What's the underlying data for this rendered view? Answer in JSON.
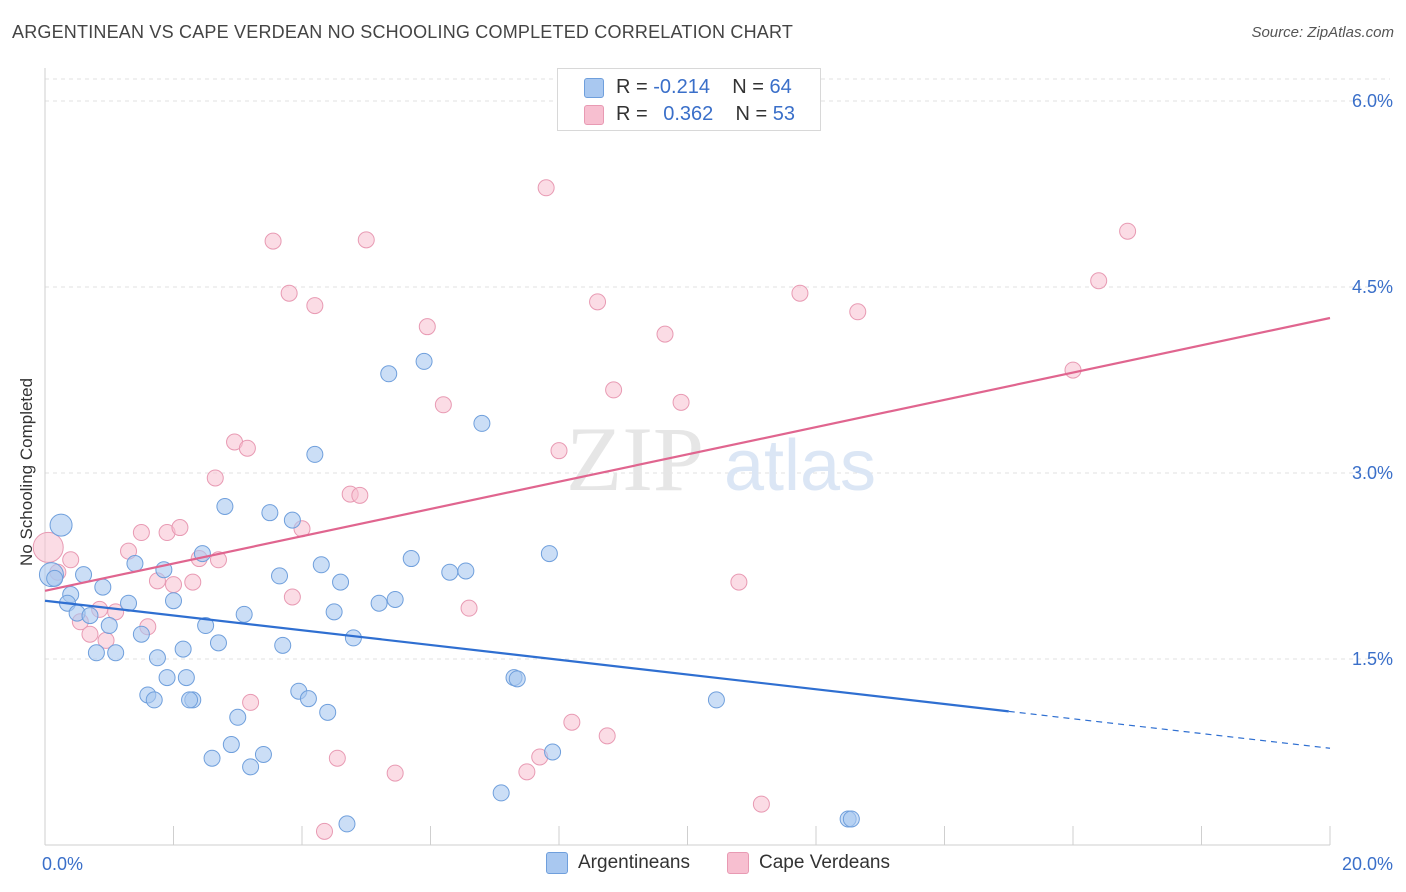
{
  "header": {
    "title": "ARGENTINEAN VS CAPE VERDEAN NO SCHOOLING COMPLETED CORRELATION CHART",
    "source": "Source: ZipAtlas.com"
  },
  "watermark": {
    "zip": "ZIP",
    "atlas": "atlas"
  },
  "legend": {
    "argentineans": {
      "r_label": "R =",
      "r_value": "-0.214",
      "n_label": "N =",
      "n_value": "64"
    },
    "cape_verdeans": {
      "r_label": "R =",
      "r_value": "0.362",
      "n_label": "N =",
      "n_value": "53"
    }
  },
  "bottom_legend": {
    "argentineans": "Argentineans",
    "cape_verdeans": "Cape Verdeans"
  },
  "colors": {
    "argentineans_fill": "#a9c8f0",
    "argentineans_stroke": "#6f9fdc",
    "argentineans_line": "#2f6fd1",
    "cape_verdeans_fill": "#f7bfd0",
    "cape_verdeans_stroke": "#e89ab3",
    "cape_verdeans_line": "#e0658f",
    "tick_label": "#3a6fc9"
  },
  "chart_data": {
    "type": "scatter",
    "title": "ARGENTINEAN VS CAPE VERDEAN NO SCHOOLING COMPLETED CORRELATION CHART",
    "xlabel": "",
    "ylabel": "No Schooling Completed",
    "xlim": [
      0,
      20
    ],
    "ylim": [
      0,
      6.25
    ],
    "x_tick_labels": [
      "0.0%",
      "20.0%"
    ],
    "y_ticks": [
      1.5,
      3.0,
      4.5,
      6.0
    ],
    "y_tick_labels": [
      "1.5%",
      "3.0%",
      "4.5%",
      "6.0%"
    ],
    "grid": "horizontal dashed",
    "legend_position": "top-center",
    "series": [
      {
        "name": "Argentineans",
        "r": -0.214,
        "n": 64,
        "trend": {
          "x0": 0,
          "y0": 1.97,
          "x1": 20,
          "y1": 0.78,
          "solid_until_x": 15.0
        },
        "points": [
          [
            0.25,
            2.58
          ],
          [
            0.1,
            2.18
          ],
          [
            0.15,
            2.15
          ],
          [
            0.4,
            2.02
          ],
          [
            0.6,
            2.18
          ],
          [
            0.35,
            1.95
          ],
          [
            0.5,
            1.87
          ],
          [
            0.7,
            1.85
          ],
          [
            0.9,
            2.08
          ],
          [
            0.8,
            1.55
          ],
          [
            1.0,
            1.77
          ],
          [
            1.1,
            1.55
          ],
          [
            1.3,
            1.95
          ],
          [
            1.4,
            2.27
          ],
          [
            1.5,
            1.7
          ],
          [
            1.6,
            1.21
          ],
          [
            1.7,
            1.17
          ],
          [
            1.75,
            1.51
          ],
          [
            1.85,
            2.22
          ],
          [
            1.9,
            1.35
          ],
          [
            2.0,
            1.97
          ],
          [
            2.15,
            1.58
          ],
          [
            2.2,
            1.35
          ],
          [
            2.3,
            1.17
          ],
          [
            2.45,
            2.35
          ],
          [
            2.5,
            1.77
          ],
          [
            2.6,
            0.7
          ],
          [
            2.7,
            1.63
          ],
          [
            2.8,
            2.73
          ],
          [
            2.9,
            0.81
          ],
          [
            3.0,
            1.03
          ],
          [
            3.1,
            1.86
          ],
          [
            3.2,
            0.63
          ],
          [
            3.4,
            0.73
          ],
          [
            3.5,
            2.68
          ],
          [
            3.65,
            2.17
          ],
          [
            3.7,
            1.61
          ],
          [
            3.85,
            2.62
          ],
          [
            3.95,
            1.24
          ],
          [
            4.1,
            1.18
          ],
          [
            4.2,
            3.15
          ],
          [
            4.3,
            2.26
          ],
          [
            4.4,
            1.07
          ],
          [
            4.5,
            1.88
          ],
          [
            4.6,
            2.12
          ],
          [
            4.7,
            0.17
          ],
          [
            4.8,
            1.67
          ],
          [
            5.2,
            1.95
          ],
          [
            5.35,
            3.8
          ],
          [
            5.45,
            1.98
          ],
          [
            5.7,
            2.31
          ],
          [
            5.9,
            3.9
          ],
          [
            6.3,
            2.2
          ],
          [
            6.55,
            2.21
          ],
          [
            6.8,
            3.4
          ],
          [
            7.1,
            0.42
          ],
          [
            7.3,
            1.35
          ],
          [
            7.85,
            2.35
          ],
          [
            7.9,
            0.75
          ],
          [
            10.45,
            1.17
          ],
          [
            12.5,
            0.21
          ],
          [
            12.55,
            0.21
          ],
          [
            7.35,
            1.34
          ],
          [
            2.25,
            1.17
          ]
        ]
      },
      {
        "name": "Cape Verdeans",
        "r": 0.362,
        "n": 53,
        "trend": {
          "x0": 0,
          "y0": 2.05,
          "x1": 20,
          "y1": 4.25
        },
        "points": [
          [
            0.05,
            2.4
          ],
          [
            0.2,
            2.2
          ],
          [
            0.4,
            2.3
          ],
          [
            0.55,
            1.8
          ],
          [
            0.7,
            1.7
          ],
          [
            0.85,
            1.9
          ],
          [
            0.95,
            1.65
          ],
          [
            1.1,
            1.88
          ],
          [
            1.3,
            2.37
          ],
          [
            1.5,
            2.52
          ],
          [
            1.6,
            1.76
          ],
          [
            1.75,
            2.13
          ],
          [
            1.9,
            2.52
          ],
          [
            2.0,
            2.1
          ],
          [
            2.1,
            2.56
          ],
          [
            2.3,
            2.12
          ],
          [
            2.4,
            2.31
          ],
          [
            2.65,
            2.96
          ],
          [
            2.7,
            2.3
          ],
          [
            2.95,
            3.25
          ],
          [
            3.15,
            3.2
          ],
          [
            3.2,
            1.15
          ],
          [
            3.55,
            4.87
          ],
          [
            3.8,
            4.45
          ],
          [
            3.85,
            2.0
          ],
          [
            4.0,
            2.55
          ],
          [
            4.2,
            4.35
          ],
          [
            4.35,
            0.11
          ],
          [
            4.55,
            0.7
          ],
          [
            4.75,
            2.83
          ],
          [
            4.9,
            2.82
          ],
          [
            5.0,
            4.88
          ],
          [
            5.45,
            0.58
          ],
          [
            5.95,
            4.18
          ],
          [
            6.2,
            3.55
          ],
          [
            6.6,
            1.91
          ],
          [
            7.5,
            0.59
          ],
          [
            7.7,
            0.71
          ],
          [
            7.8,
            5.3
          ],
          [
            8.0,
            3.18
          ],
          [
            8.2,
            0.99
          ],
          [
            8.6,
            4.38
          ],
          [
            8.75,
            0.88
          ],
          [
            8.85,
            3.67
          ],
          [
            9.65,
            4.12
          ],
          [
            9.9,
            3.57
          ],
          [
            10.8,
            2.12
          ],
          [
            11.15,
            0.33
          ],
          [
            11.75,
            4.45
          ],
          [
            12.65,
            4.3
          ],
          [
            16.0,
            3.83
          ],
          [
            16.4,
            4.55
          ],
          [
            16.85,
            4.95
          ]
        ]
      }
    ]
  }
}
